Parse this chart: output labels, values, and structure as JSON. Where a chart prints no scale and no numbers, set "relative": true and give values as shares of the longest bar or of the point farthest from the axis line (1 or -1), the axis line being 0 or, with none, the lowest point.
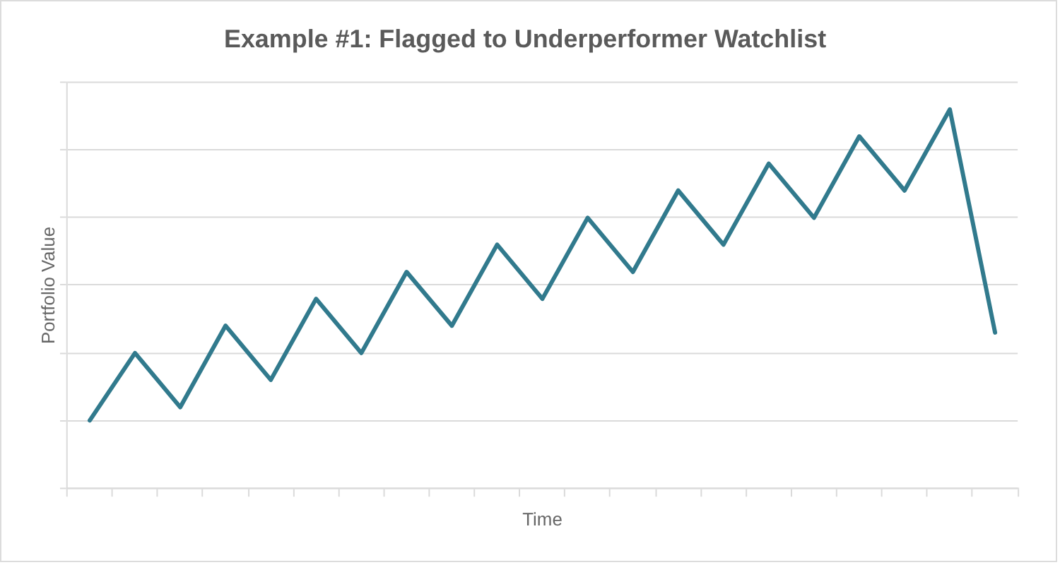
{
  "chart_data": {
    "type": "line",
    "title": "Example #1: Flagged to Underperformer Watchlist",
    "xlabel": "Time",
    "ylabel": "Portfolio Value",
    "categories": [
      null,
      null,
      null,
      null,
      null,
      null,
      null,
      null,
      null,
      null,
      null,
      null,
      null,
      null,
      null,
      null,
      null,
      null,
      null,
      null,
      null
    ],
    "values": [
      0.179,
      0.357,
      0.214,
      0.429,
      0.286,
      0.5,
      0.357,
      0.571,
      0.429,
      0.643,
      0.5,
      0.714,
      0.571,
      0.786,
      0.643,
      0.857,
      0.714,
      0.929,
      0.786,
      1,
      0.411
    ],
    "color": "#317a8d",
    "relative": true,
    "grid": "y"
  }
}
